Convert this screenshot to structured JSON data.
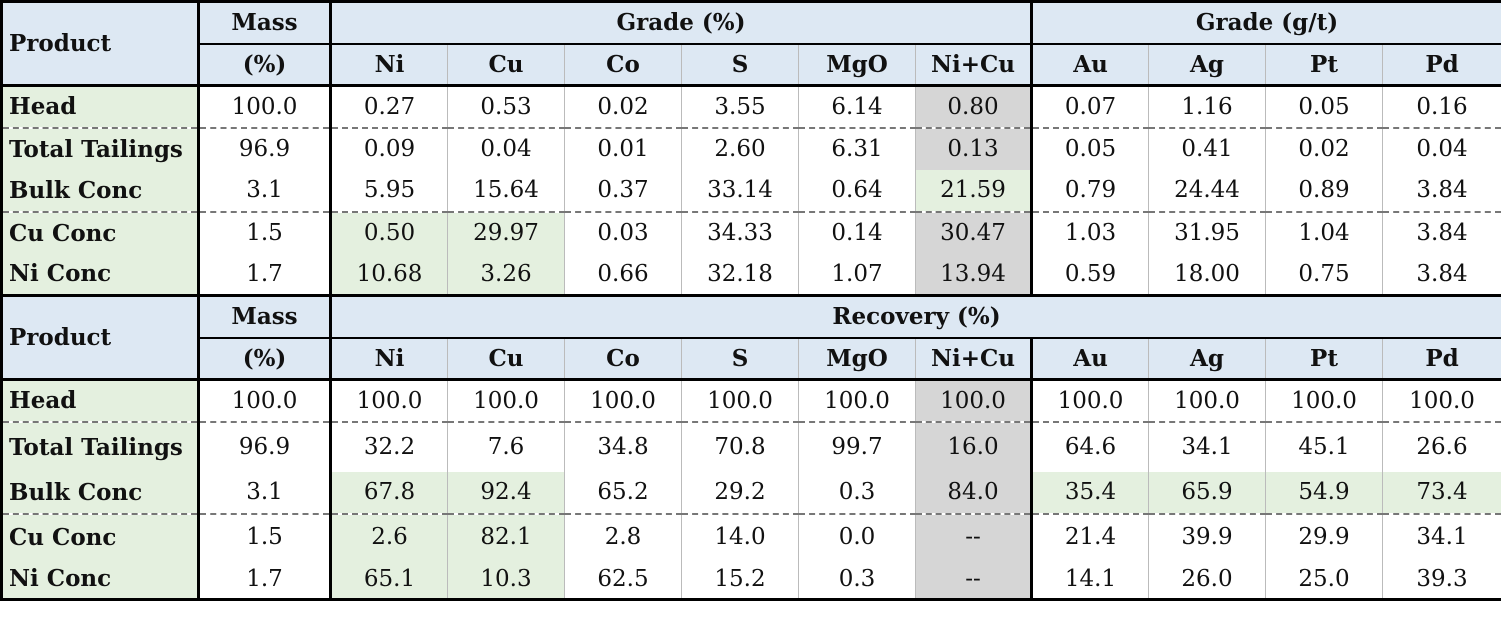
{
  "labels": {
    "product": "Product",
    "mass": "Mass",
    "mass_unit": "(%)",
    "grade_pct": "Grade (%)",
    "grade_gt": "Grade (g/t)",
    "recovery": "Recovery (%)"
  },
  "columns": [
    "Ni",
    "Cu",
    "Co",
    "S",
    "MgO",
    "Ni+Cu",
    "Au",
    "Ag",
    "Pt",
    "Pd"
  ],
  "grade_rows": [
    {
      "product": "Head",
      "mass": "100.0",
      "values": [
        "0.27",
        "0.53",
        "0.02",
        "3.55",
        "6.14",
        "0.80",
        "0.07",
        "1.16",
        "0.05",
        "0.16"
      ]
    },
    {
      "product": "Total Tailings",
      "mass": "96.9",
      "values": [
        "0.09",
        "0.04",
        "0.01",
        "2.60",
        "6.31",
        "0.13",
        "0.05",
        "0.41",
        "0.02",
        "0.04"
      ]
    },
    {
      "product": "Bulk Conc",
      "mass": "3.1",
      "values": [
        "5.95",
        "15.64",
        "0.37",
        "33.14",
        "0.64",
        "21.59",
        "0.79",
        "24.44",
        "0.89",
        "3.84"
      ]
    },
    {
      "product": "Cu Conc",
      "mass": "1.5",
      "values": [
        "0.50",
        "29.97",
        "0.03",
        "34.33",
        "0.14",
        "30.47",
        "1.03",
        "31.95",
        "1.04",
        "3.84"
      ]
    },
    {
      "product": "Ni Conc",
      "mass": "1.7",
      "values": [
        "10.68",
        "3.26",
        "0.66",
        "32.18",
        "1.07",
        "13.94",
        "0.59",
        "18.00",
        "0.75",
        "3.84"
      ]
    }
  ],
  "recovery_rows": [
    {
      "product": "Head",
      "mass": "100.0",
      "values": [
        "100.0",
        "100.0",
        "100.0",
        "100.0",
        "100.0",
        "100.0",
        "100.0",
        "100.0",
        "100.0",
        "100.0"
      ]
    },
    {
      "product": "Total Tailings",
      "mass": "96.9",
      "values": [
        "32.2",
        "7.6",
        "34.8",
        "70.8",
        "99.7",
        "16.0",
        "64.6",
        "34.1",
        "45.1",
        "26.6"
      ]
    },
    {
      "product": "Bulk Conc",
      "mass": "3.1",
      "values": [
        "67.8",
        "92.4",
        "65.2",
        "29.2",
        "0.3",
        "84.0",
        "35.4",
        "65.9",
        "54.9",
        "73.4"
      ]
    },
    {
      "product": "Cu Conc",
      "mass": "1.5",
      "values": [
        "2.6",
        "82.1",
        "2.8",
        "14.0",
        "0.0",
        "--",
        "21.4",
        "39.9",
        "29.9",
        "34.1"
      ]
    },
    {
      "product": "Ni Conc",
      "mass": "1.7",
      "values": [
        "65.1",
        "10.3",
        "62.5",
        "15.2",
        "0.3",
        "--",
        "14.1",
        "26.0",
        "25.0",
        "39.3"
      ]
    }
  ],
  "colors": {
    "header_blue": "#dde8f3",
    "highlight_green": "#e4f0df",
    "highlight_grey": "#d6d6d6"
  }
}
